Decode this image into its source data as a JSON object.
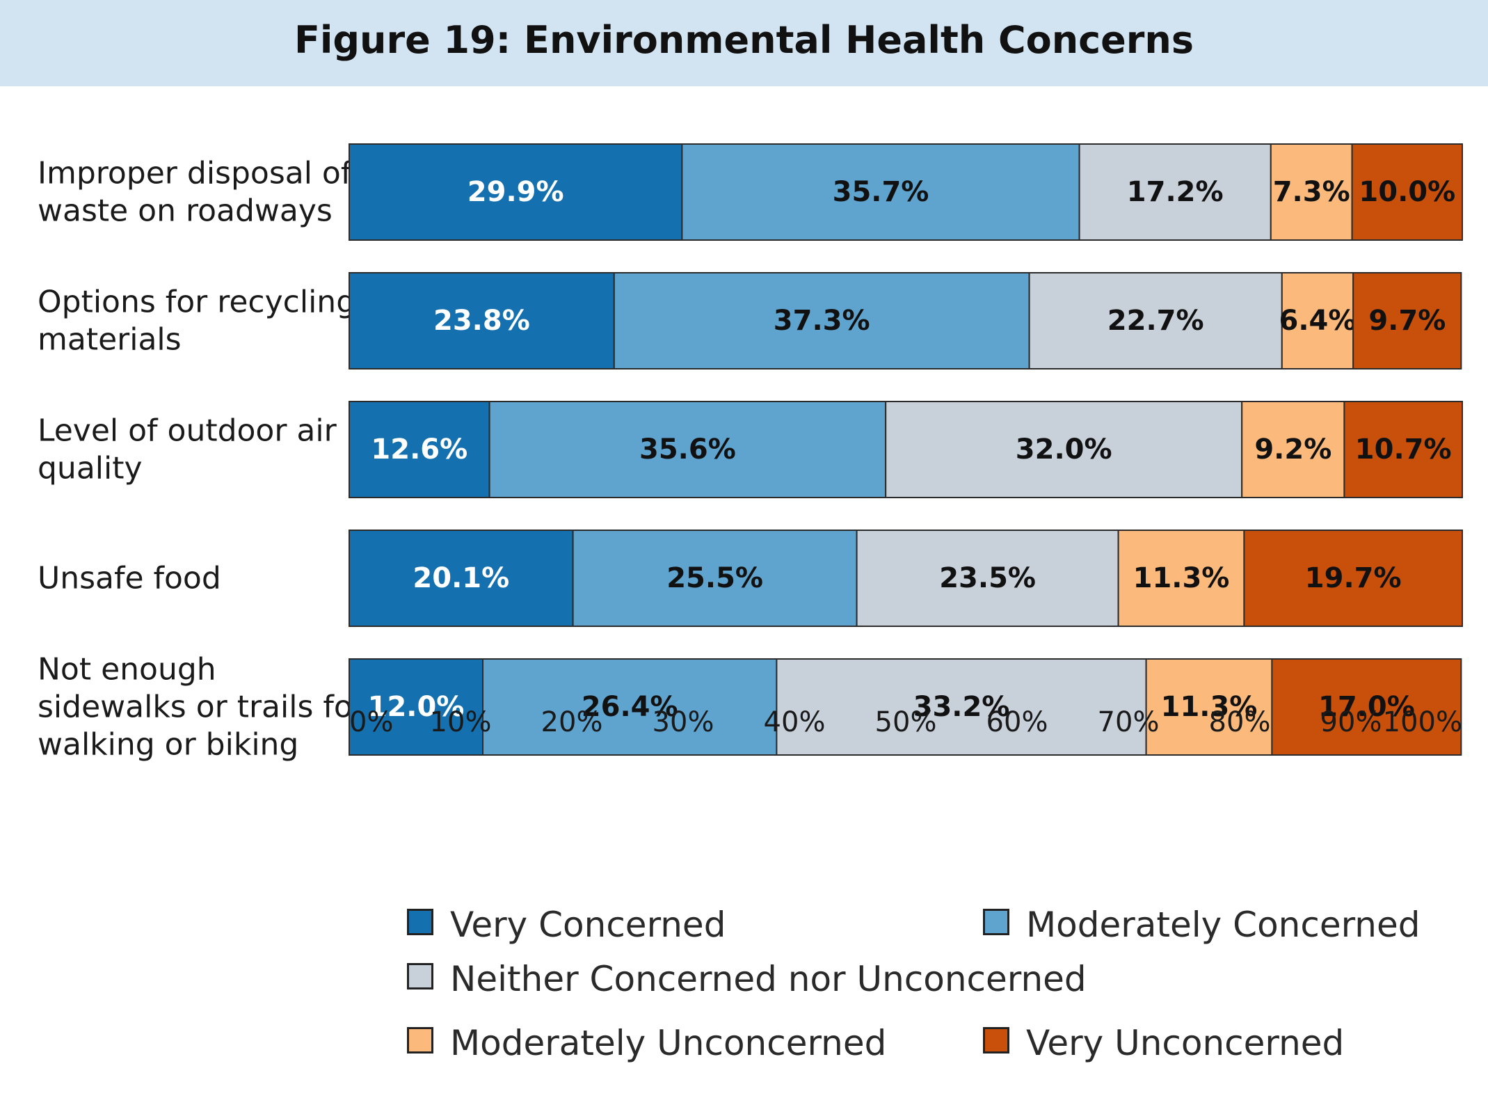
{
  "chart_data": {
    "type": "bar",
    "orientation": "horizontal",
    "stacked": true,
    "title": "Figure 19: Environmental Health Concerns",
    "categories": [
      [
        "Improper disposal of",
        "waste on roadways"
      ],
      [
        "Options for recycling",
        "materials"
      ],
      [
        "Level of outdoor air",
        "quality"
      ],
      [
        "Unsafe food"
      ],
      [
        "Not enough",
        "sidewalks or trails for",
        "walking or biking"
      ]
    ],
    "series": [
      {
        "name": "Very Concerned",
        "color": "#1470AE",
        "label_color": "#ffffff",
        "values": [
          29.9,
          23.8,
          12.6,
          20.1,
          12.0
        ],
        "labels": [
          "29.9%",
          "23.8%",
          "12.6%",
          "20.1%",
          "12.0%"
        ]
      },
      {
        "name": "Moderately Concerned",
        "color": "#5FA3CF",
        "label_color": "#111111",
        "values": [
          35.7,
          37.3,
          35.6,
          25.5,
          26.4
        ],
        "labels": [
          "35.7%",
          "37.3%",
          "35.6%",
          "25.5%",
          "26.4%"
        ]
      },
      {
        "name": "Neither Concerned nor Unconcerned",
        "color": "#C8D0DA",
        "label_color": "#111111",
        "values": [
          17.2,
          22.7,
          32.0,
          23.5,
          33.2
        ],
        "labels": [
          "17.2%",
          "22.7%",
          "32.0%",
          "23.5%",
          "33.2%"
        ]
      },
      {
        "name": "Moderately Unconcerned",
        "color": "#FBBA7B",
        "label_color": "#111111",
        "values": [
          7.3,
          6.4,
          9.2,
          11.3,
          11.3
        ],
        "labels": [
          "7.3%",
          "6.4%",
          "9.2%",
          "11.3%",
          "11.3%"
        ]
      },
      {
        "name": "Very Unconcerned",
        "color": "#C9500A",
        "label_color": "#111111",
        "values": [
          10.0,
          9.7,
          10.7,
          19.7,
          17.0
        ],
        "labels": [
          "10.0%",
          "9.7%",
          "10.7%",
          "19.7%",
          "17.0%"
        ]
      }
    ],
    "xlim": [
      0,
      100
    ],
    "xticks": [
      "0%",
      "10%",
      "20%",
      "30%",
      "40%",
      "50%",
      "60%",
      "70%",
      "80%",
      "90%",
      "100%"
    ],
    "grid": false,
    "legend_position": "bottom"
  }
}
